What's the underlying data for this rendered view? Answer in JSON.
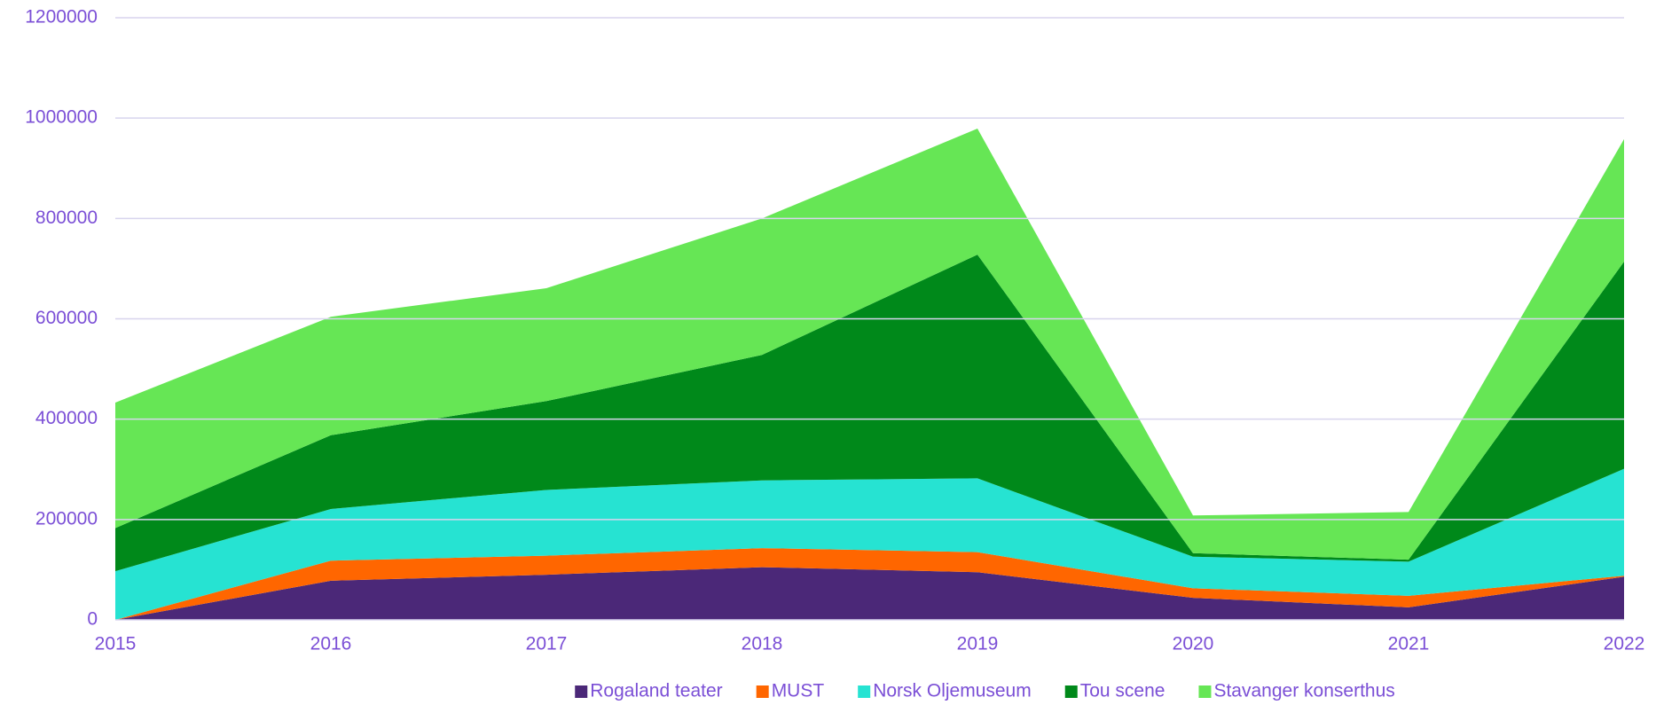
{
  "chart_data": {
    "type": "stacked_area",
    "x": [
      2015,
      2016,
      2017,
      2018,
      2019,
      2020,
      2021,
      2022
    ],
    "xlim": [
      2015,
      2022
    ],
    "xticks": [
      2015,
      2016,
      2017,
      2018,
      2019,
      2020,
      2021,
      2022
    ],
    "ylim": [
      0,
      1200000
    ],
    "yticks": [
      0,
      200000,
      400000,
      600000,
      800000,
      1000000,
      1200000
    ],
    "grid": true,
    "legend": "bottom",
    "series": [
      {
        "name": "Rogaland teater",
        "color": "#4b2878",
        "values": [
          0,
          78000,
          90000,
          105000,
          95000,
          44000,
          25000,
          86000
        ]
      },
      {
        "name": "MUST",
        "color": "#ff6600",
        "values": [
          0,
          40000,
          38000,
          38000,
          40000,
          19000,
          23000,
          2000
        ]
      },
      {
        "name": "Norsk Oljemuseum",
        "color": "#26e3d2",
        "values": [
          97000,
          103000,
          131000,
          135000,
          147000,
          63000,
          68000,
          213000
        ]
      },
      {
        "name": "Tou scene",
        "color": "#00891a",
        "values": [
          86000,
          147000,
          177000,
          250000,
          446000,
          7000,
          4000,
          413000
        ]
      },
      {
        "name": "Stavanger konserthus",
        "color": "#66e655",
        "values": [
          250000,
          236000,
          225000,
          272000,
          251000,
          75000,
          95000,
          244000
        ]
      }
    ]
  }
}
